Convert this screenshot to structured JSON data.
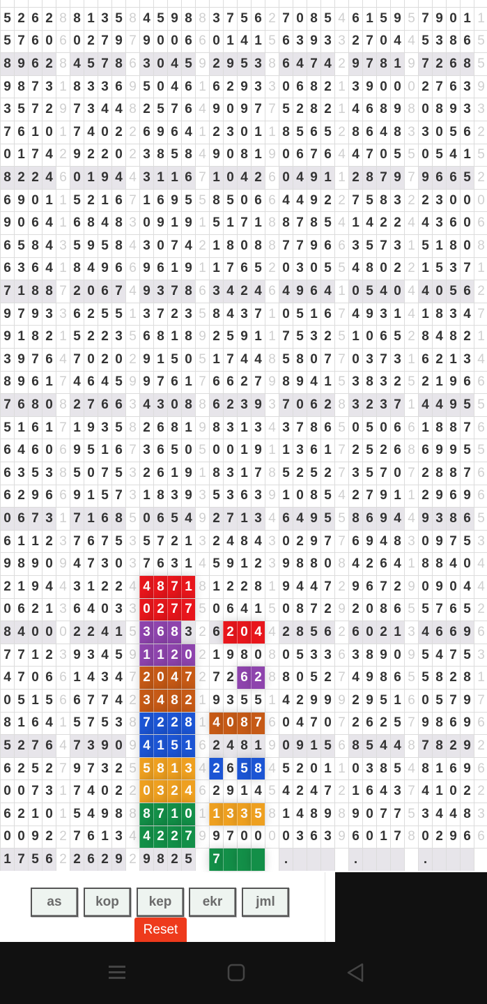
{
  "grid": {
    "rows": [
      "52628813584598837562708546159579011",
      "57606027979006601415639332704453865",
      "89628457863045929538647429781972685",
      "98731833695046162933068213900027639",
      "35729734482576490977528214689808933",
      "76101740226964123011856528648330562",
      "01742922023858490819067644705505415",
      "82246019443116710426049112879796652",
      "69011521671695585066449227583223000",
      "90641684830919151718878541422443606",
      "65843595843074218088779663573151808",
      "63641849669619117652030554802215371",
      "71887206749378634246496410540440562",
      "97933625513723584371051674931418347",
      "91821522356818925911753251065284821",
      "39764702029150517448580770373162134",
      "89617464599761766279894153832521966",
      "76808276634308862393706283237144955",
      "51617193582681983134378650506618876",
      "64606951673650500191136172526869955",
      "63538507532619183178525273570728876",
      "62966915731839353639108542791129696",
      "06731716850654927134649558694493865",
      "61123767535721324843029776948309753",
      "98909473037631459123988084264188404",
      "21944312244871812281944729672909044",
      "06213640330277506415087292086557652",
      "84000224153683262044285626021346696",
      "77123934591120219808053363890954753",
      "47066143472047272628805274986558281",
      "05156677423482193551429992951605797",
      "81641575387228140876047072625798696",
      "52764739094151624819091568544878292",
      "62527973255813426584520110385481696",
      "00731740220324629145424721643741022",
      "62101549888710113358148989077534483",
      "00922761344227997000036396017802966",
      "17562262929825 7    .    .    .    ."
    ],
    "shaded_rows": [
      2,
      7,
      12,
      17,
      22,
      27,
      32,
      37
    ],
    "colors": {
      "red": "#e8161c",
      "purple": "#8e44ad",
      "rust": "#c65a16",
      "blue": "#1c55d4",
      "amber": "#eea020",
      "green": "#138f48"
    },
    "highlights": [
      {
        "row": 25,
        "cols": [
          10,
          11,
          12,
          13
        ],
        "color": "red"
      },
      {
        "row": 26,
        "cols": [
          10,
          11,
          12,
          13
        ],
        "color": "red"
      },
      {
        "row": 27,
        "cols": [
          10,
          11,
          12
        ],
        "color": "purple"
      },
      {
        "row": 27,
        "cols": [
          16,
          17,
          18
        ],
        "color": "red"
      },
      {
        "row": 28,
        "cols": [
          10,
          11,
          12,
          13
        ],
        "color": "purple"
      },
      {
        "row": 29,
        "cols": [
          10,
          11,
          12,
          13
        ],
        "color": "rust"
      },
      {
        "row": 29,
        "cols": [
          17,
          18
        ],
        "color": "purple"
      },
      {
        "row": 30,
        "cols": [
          10,
          11,
          12,
          13
        ],
        "color": "rust"
      },
      {
        "row": 31,
        "cols": [
          10,
          11,
          12,
          13
        ],
        "color": "blue"
      },
      {
        "row": 31,
        "cols": [
          15,
          16,
          17,
          18
        ],
        "color": "rust"
      },
      {
        "row": 32,
        "cols": [
          10,
          11,
          12,
          13
        ],
        "color": "blue"
      },
      {
        "row": 33,
        "cols": [
          10,
          11,
          12,
          13
        ],
        "color": "amber"
      },
      {
        "row": 33,
        "cols": [
          15,
          17,
          18
        ],
        "color": "blue"
      },
      {
        "row": 34,
        "cols": [
          10,
          11,
          12,
          13
        ],
        "color": "amber"
      },
      {
        "row": 35,
        "cols": [
          10,
          11,
          12,
          13
        ],
        "color": "green"
      },
      {
        "row": 35,
        "cols": [
          15,
          16,
          17,
          18
        ],
        "color": "amber"
      },
      {
        "row": 36,
        "cols": [
          10,
          11,
          12,
          13
        ],
        "color": "green"
      },
      {
        "row": 37,
        "cols": [
          15,
          16,
          17,
          18
        ],
        "color": "green"
      }
    ]
  },
  "buttons": [
    {
      "id": "as",
      "label": "as"
    },
    {
      "id": "kop",
      "label": "kop"
    },
    {
      "id": "kep",
      "label": "kep"
    },
    {
      "id": "ekr",
      "label": "ekr"
    },
    {
      "id": "jml",
      "label": "jml"
    }
  ],
  "reset_label": "Reset",
  "navbar": {
    "icons": [
      "menu-icon",
      "home-icon",
      "back-icon"
    ]
  }
}
